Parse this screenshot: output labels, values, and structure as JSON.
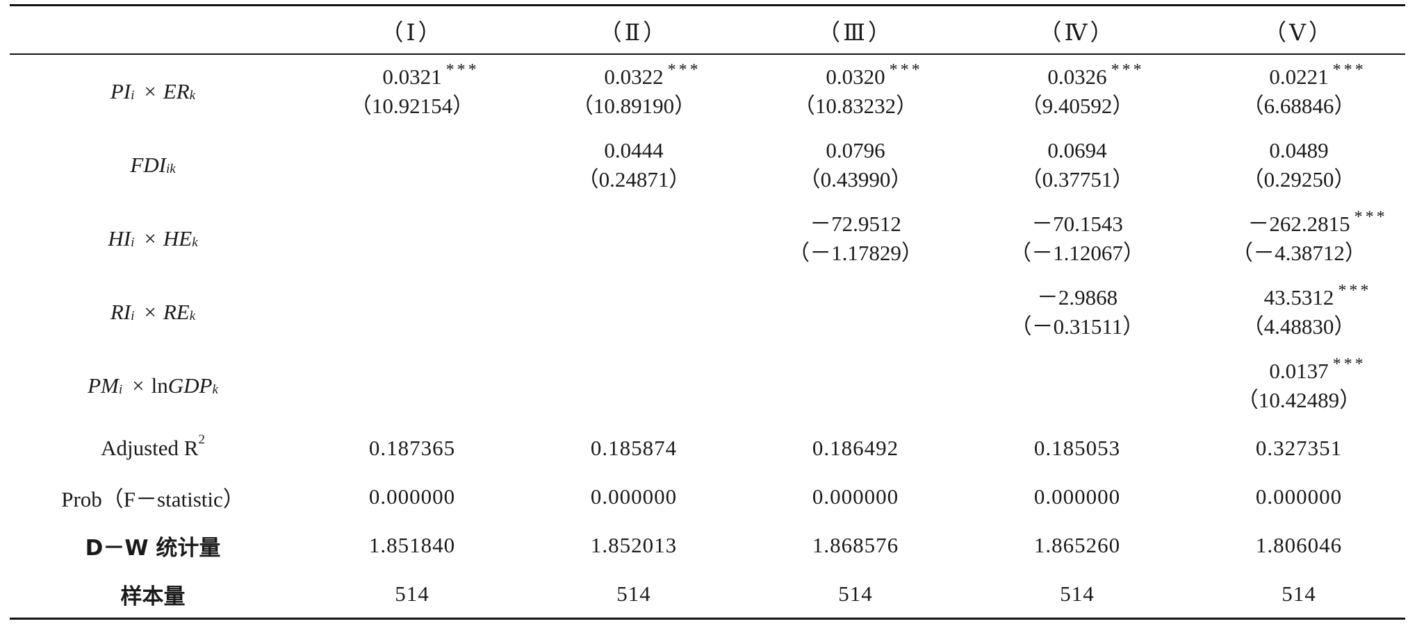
{
  "columns": [
    "（Ⅰ）",
    "（Ⅱ）",
    "（Ⅲ）",
    "（Ⅳ）",
    "（Ⅴ）"
  ],
  "row_labels": {
    "pi_er": {
      "left": "PI",
      "left_sub": "i",
      "op": "×",
      "right": "ER",
      "right_sub": "k"
    },
    "fdi": {
      "main": "FDI",
      "sub": "ik"
    },
    "hi_he": {
      "left": "HI",
      "left_sub": "i",
      "op": "×",
      "right": "HE",
      "right_sub": "k"
    },
    "ri_re": {
      "left": "RI",
      "left_sub": "i",
      "op": "×",
      "right": "RE",
      "right_sub": "k"
    },
    "pm_gdp": {
      "left": "PM",
      "left_sub": "i",
      "op": "×",
      "ln": "ln",
      "right": "GDP",
      "right_sub": "k"
    },
    "adj_r2": {
      "text": "Adjusted R",
      "sup": "2"
    },
    "prob_f": "Prob（F－statistic）",
    "dw": "D－W 统计量",
    "n": "样本量"
  },
  "rows": {
    "pi_er": [
      {
        "coef": "0.0321",
        "stars": "***",
        "t": "（10.92154）"
      },
      {
        "coef": "0.0322",
        "stars": "***",
        "t": "（10.89190）"
      },
      {
        "coef": "0.0320",
        "stars": "***",
        "t": "（10.83232）"
      },
      {
        "coef": "0.0326",
        "stars": "***",
        "t": "（9.40592）"
      },
      {
        "coef": "0.0221",
        "stars": "***",
        "t": "（6.68846）"
      }
    ],
    "fdi": [
      {
        "coef": "0.0444",
        "stars": "",
        "t": "（0.24871）"
      },
      {
        "coef": "0.0796",
        "stars": "",
        "t": "（0.43990）"
      },
      {
        "coef": "0.0694",
        "stars": "",
        "t": "（0.37751）"
      },
      {
        "coef": "0.0489",
        "stars": "",
        "t": "（0.29250）"
      }
    ],
    "hi_he": [
      {
        "coef": "－72.9512",
        "stars": "",
        "t": "（－1.17829）"
      },
      {
        "coef": "－70.1543",
        "stars": "",
        "t": "（－1.12067）"
      },
      {
        "coef": "－262.2815",
        "stars": "***",
        "t": "（－4.38712）"
      }
    ],
    "ri_re": [
      {
        "coef": "－2.9868",
        "stars": "",
        "t": "（－0.31511）"
      },
      {
        "coef": "43.5312",
        "stars": "***",
        "t": "（4.48830）"
      }
    ],
    "pm_gdp": [
      {
        "coef": "0.0137",
        "stars": "***",
        "t": "（10.42489）"
      }
    ],
    "adj_r2": [
      "0.187365",
      "0.185874",
      "0.186492",
      "0.185053",
      "0.327351"
    ],
    "prob_f": [
      "0.000000",
      "0.000000",
      "0.000000",
      "0.000000",
      "0.000000"
    ],
    "dw": [
      "1.851840",
      "1.852013",
      "1.868576",
      "1.865260",
      "1.806046"
    ],
    "n": [
      "514",
      "514",
      "514",
      "514",
      "514"
    ]
  }
}
